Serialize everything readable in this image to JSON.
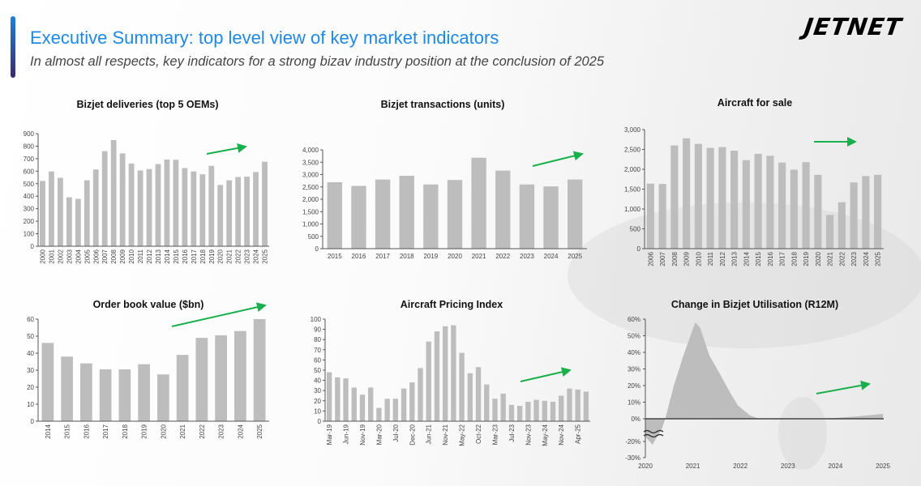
{
  "header": {
    "title": "Executive Summary: top level view of key market indicators",
    "subtitle": "In almost all respects, key indicators for a strong bizav industry position at the conclusion of 2025",
    "logo": "JETNET"
  },
  "colors": {
    "bar": "#bdbdbd",
    "axis": "#555555",
    "trend_arrow": "#17b04a",
    "title": "#1e88e5"
  },
  "chart_data": [
    {
      "type": "bar",
      "title": "Bizjet deliveries (top 5 OEMs)",
      "categories": [
        "2000",
        "2001",
        "2002",
        "2003",
        "2004",
        "2005",
        "2006",
        "2007",
        "2008",
        "2009",
        "2010",
        "2011",
        "2012",
        "2013",
        "2014",
        "2015",
        "2016",
        "2017",
        "2018",
        "2019",
        "2020",
        "2021",
        "2022",
        "2023",
        "2024",
        "2025"
      ],
      "values": [
        522,
        598,
        547,
        391,
        379,
        527,
        614,
        760,
        849,
        742,
        661,
        606,
        617,
        657,
        693,
        691,
        625,
        598,
        575,
        643,
        490,
        527,
        553,
        556,
        593,
        676
      ],
      "ylim": [
        0,
        900
      ],
      "yticks": [
        "0",
        "100",
        "200",
        "300",
        "400",
        "500",
        "600",
        "700",
        "800",
        "900"
      ],
      "trend": "up",
      "grid": false
    },
    {
      "type": "bar",
      "title": "Bizjet transactions (units)",
      "categories": [
        "2015",
        "2016",
        "2017",
        "2018",
        "2019",
        "2020",
        "2021",
        "2022",
        "2023",
        "2024",
        "2025"
      ],
      "values": [
        2690,
        2540,
        2800,
        2950,
        2600,
        2780,
        3680,
        3160,
        2600,
        2520,
        2800
      ],
      "ylim": [
        0,
        4000
      ],
      "yticks": [
        "0",
        "500",
        "1,000",
        "1,500",
        "2,000",
        "2,500",
        "3,000",
        "3,500",
        "4,000"
      ],
      "trend": "up",
      "grid": false
    },
    {
      "type": "bar",
      "title": "Aircraft for sale",
      "categories": [
        "2006",
        "2007",
        "2008",
        "2009",
        "2010",
        "2011",
        "2012",
        "2013",
        "2014",
        "2015",
        "2016",
        "2017",
        "2018",
        "2019",
        "2020",
        "2021",
        "2022",
        "2023",
        "2024",
        "2025"
      ],
      "values": [
        1640,
        1630,
        2600,
        2780,
        2640,
        2540,
        2560,
        2470,
        2230,
        2390,
        2340,
        2170,
        1990,
        2180,
        1860,
        850,
        1170,
        1670,
        1830,
        1860
      ],
      "ylim": [
        0,
        3000
      ],
      "yticks": [
        "0",
        "500",
        "1,000",
        "1,500",
        "2,000",
        "2,500",
        "3,000"
      ],
      "trend": "flat",
      "grid": false
    },
    {
      "type": "bar",
      "title": "Order book value ($bn)",
      "categories": [
        "2014",
        "2015",
        "2016",
        "2017",
        "2018",
        "2019",
        "2020",
        "2021",
        "2022",
        "2023",
        "2024",
        "2025"
      ],
      "values": [
        46,
        38,
        34,
        30.5,
        30.5,
        33.5,
        27.5,
        39,
        49,
        50.5,
        53,
        60
      ],
      "ylim": [
        0,
        60
      ],
      "yticks": [
        "0",
        "10",
        "20",
        "30",
        "40",
        "50",
        "60"
      ],
      "trend": "up",
      "grid": false
    },
    {
      "type": "bar",
      "title": "Aircraft Pricing Index",
      "categories": [
        "Mar-19",
        "",
        "Jun-19",
        "",
        "Nov-19",
        "",
        "Mar-20",
        "",
        "Jul-20",
        "",
        "Dec-20",
        "",
        "Jun-21",
        "",
        "Nov-21",
        "",
        "May-22",
        "",
        "Oct-22",
        "",
        "Mar-23",
        "",
        "Jul-23",
        "",
        "Nov-23",
        "",
        "May-24",
        "",
        "Nov-24",
        "",
        "Apr-25",
        ""
      ],
      "values": [
        48,
        43,
        42,
        33,
        26,
        33,
        13,
        22,
        22,
        32,
        38,
        52,
        78,
        88,
        93,
        94,
        67,
        47,
        53,
        36,
        22,
        27,
        16,
        15,
        19,
        21,
        20,
        19,
        25,
        32,
        31,
        29
      ],
      "ylim": [
        0,
        100
      ],
      "yticks": [
        "0",
        "10",
        "20",
        "30",
        "40",
        "50",
        "60",
        "70",
        "80",
        "90",
        "100"
      ],
      "trend": "up",
      "grid": false
    },
    {
      "type": "area",
      "title": "Change in Bizjet Utilisation (R12M)",
      "x": [
        2020.0,
        2020.15,
        2020.35,
        2020.42,
        2020.6,
        2020.8,
        2021.05,
        2021.15,
        2021.35,
        2021.55,
        2021.8,
        2021.95,
        2022.2,
        2022.4,
        2022.6,
        2022.9,
        2023.2,
        2023.6,
        2024.0,
        2024.5,
        2025.0
      ],
      "y": [
        -17,
        -22,
        -12,
        0,
        20,
        38,
        58,
        55,
        38,
        28,
        15,
        8,
        2,
        0,
        -0.5,
        -1,
        -0.5,
        0,
        0.5,
        1.5,
        3
      ],
      "xticks": [
        "2020",
        "2021",
        "2022",
        "2023",
        "2024",
        "2025"
      ],
      "yticks": [
        "-30%",
        "-20%",
        "0%",
        "10%",
        "20%",
        "30%",
        "40%",
        "50%",
        "60%"
      ],
      "ylim": [
        -30,
        60
      ],
      "axis_break": true,
      "trend": "up",
      "grid": false
    }
  ]
}
